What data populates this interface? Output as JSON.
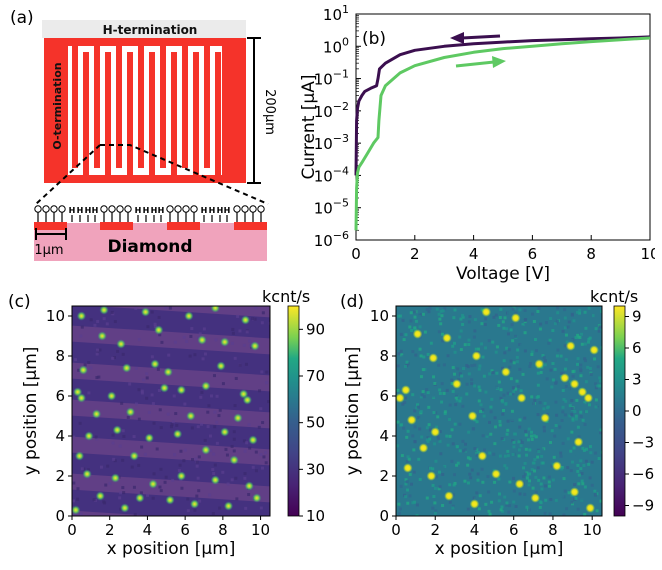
{
  "panel_a": {
    "label": "(a)",
    "h_termination": "H-termination",
    "o_termination": "O-termination",
    "scale_200": "200μm",
    "scale_1": "1μm",
    "diamond": "Diamond",
    "colors": {
      "metal": "#f5332a",
      "diamond": "#f0a3bc",
      "background_strip": "#ebebeb"
    }
  },
  "panel_b": {
    "label": "(b)"
  },
  "panel_c": {
    "label": "(c)",
    "colorbar_title": "kcnt/s",
    "colorbar_ticks": [
      "90",
      "70",
      "50",
      "30",
      "10"
    ]
  },
  "panel_d": {
    "label": "(d)",
    "colorbar_title": "kcnt/s",
    "colorbar_ticks": [
      "9",
      "6",
      "3",
      "0",
      "−3",
      "−6",
      "−9"
    ]
  },
  "chart_data": [
    {
      "type": "line",
      "panel": "b",
      "xlabel": "Voltage [V]",
      "ylabel": "Current [μA]",
      "xlim": [
        0,
        10
      ],
      "ylim": [
        1e-06,
        10
      ],
      "yscale": "log",
      "xticks": [
        "0",
        "2",
        "4",
        "6",
        "8",
        "10"
      ],
      "yticks": [
        "10^1",
        "10^0",
        "10^-1",
        "10^-2",
        "10^-3",
        "10^-4",
        "10^-5",
        "10^-6"
      ],
      "arrow_annotations": [
        "sweep down (dark)",
        "sweep up (green)"
      ],
      "series": [
        {
          "color": "#3b0f4f",
          "x": [
            0.0,
            0.02,
            0.05,
            0.1,
            0.2,
            0.3,
            0.5,
            0.7,
            0.75,
            0.8,
            1.0,
            1.5,
            2,
            3,
            4,
            5,
            6,
            7,
            8,
            9,
            10
          ],
          "y": [
            0.0001,
            0.005,
            0.012,
            0.02,
            0.03,
            0.04,
            0.05,
            0.06,
            0.1,
            0.2,
            0.3,
            0.55,
            0.75,
            1.0,
            1.2,
            1.35,
            1.5,
            1.6,
            1.7,
            1.8,
            1.95
          ]
        },
        {
          "color": "#5ec962",
          "x": [
            0.0,
            0.02,
            0.05,
            0.1,
            0.2,
            0.4,
            0.6,
            0.75,
            0.78,
            0.85,
            1.0,
            1.5,
            2,
            3,
            4,
            5,
            6,
            7,
            8,
            9,
            10
          ],
          "y": [
            2e-06,
            4e-05,
            0.00012,
            0.00018,
            0.00025,
            0.0005,
            0.001,
            0.0015,
            0.005,
            0.03,
            0.06,
            0.15,
            0.25,
            0.45,
            0.65,
            0.85,
            1.0,
            1.2,
            1.4,
            1.6,
            1.8
          ]
        }
      ]
    },
    {
      "type": "heatmap",
      "panel": "c",
      "xlabel": "x position [μm]",
      "ylabel": "y position [μm]",
      "xlim": [
        0,
        10.5
      ],
      "ylim": [
        0,
        10.5
      ],
      "xticks": [
        "0",
        "2",
        "4",
        "6",
        "8",
        "10"
      ],
      "yticks": [
        "0",
        "2",
        "4",
        "6",
        "8",
        "10"
      ],
      "colorbar_range": [
        10,
        100
      ],
      "colormap": "viridis",
      "stripe_count": 6,
      "spots": [
        [
          0.5,
          10.0
        ],
        [
          1.7,
          10.3
        ],
        [
          3.9,
          10.2
        ],
        [
          4.6,
          9.3
        ],
        [
          6.2,
          10.0
        ],
        [
          7.6,
          10.4
        ],
        [
          9.2,
          9.8
        ],
        [
          1.6,
          9.0
        ],
        [
          2.6,
          8.6
        ],
        [
          6.9,
          8.8
        ],
        [
          8.1,
          8.7
        ],
        [
          9.7,
          8.5
        ],
        [
          0.6,
          7.3
        ],
        [
          2.9,
          7.4
        ],
        [
          4.4,
          7.6
        ],
        [
          5.1,
          7.2
        ],
        [
          7.9,
          7.5
        ],
        [
          0.3,
          6.2
        ],
        [
          0.5,
          5.9
        ],
        [
          2.1,
          6.0
        ],
        [
          4.9,
          6.4
        ],
        [
          5.8,
          6.3
        ],
        [
          7.1,
          6.5
        ],
        [
          9.1,
          6.1
        ],
        [
          9.3,
          5.8
        ],
        [
          1.3,
          5.1
        ],
        [
          3.1,
          5.2
        ],
        [
          6.3,
          5.0
        ],
        [
          8.8,
          4.9
        ],
        [
          0.9,
          4.0
        ],
        [
          2.4,
          4.3
        ],
        [
          4.1,
          3.9
        ],
        [
          5.6,
          4.1
        ],
        [
          8.1,
          4.2
        ],
        [
          9.6,
          3.8
        ],
        [
          0.4,
          3.0
        ],
        [
          3.3,
          3.0
        ],
        [
          7.1,
          3.3
        ],
        [
          8.6,
          2.8
        ],
        [
          0.8,
          2.1
        ],
        [
          2.3,
          1.9
        ],
        [
          4.3,
          1.6
        ],
        [
          5.8,
          2.0
        ],
        [
          7.6,
          1.8
        ],
        [
          9.4,
          1.5
        ],
        [
          1.5,
          1.0
        ],
        [
          3.6,
          0.9
        ],
        [
          5.2,
          0.8
        ],
        [
          6.5,
          0.6
        ],
        [
          8.3,
          0.5
        ],
        [
          9.8,
          0.9
        ],
        [
          0.2,
          0.3
        ],
        [
          2.8,
          0.4
        ]
      ]
    },
    {
      "type": "heatmap",
      "panel": "d",
      "xlabel": "x position [μm]",
      "ylabel": "y position [μm]",
      "xlim": [
        0,
        10.5
      ],
      "ylim": [
        0,
        10.5
      ],
      "xticks": [
        "0",
        "2",
        "4",
        "6",
        "8",
        "10"
      ],
      "yticks": [
        "0",
        "2",
        "4",
        "6",
        "8",
        "10"
      ],
      "colorbar_range": [
        -10,
        10
      ],
      "colormap": "viridis",
      "spots": [
        [
          4.6,
          10.2
        ],
        [
          6.1,
          9.9
        ],
        [
          1.1,
          9.1
        ],
        [
          2.6,
          8.9
        ],
        [
          4.1,
          8.0
        ],
        [
          8.9,
          8.5
        ],
        [
          10.1,
          8.3
        ],
        [
          1.9,
          7.9
        ],
        [
          5.6,
          7.2
        ],
        [
          7.3,
          7.6
        ],
        [
          0.2,
          5.9
        ],
        [
          0.5,
          6.3
        ],
        [
          3.1,
          6.6
        ],
        [
          6.4,
          5.9
        ],
        [
          8.6,
          6.9
        ],
        [
          9.1,
          6.6
        ],
        [
          9.5,
          6.2
        ],
        [
          9.8,
          5.9
        ],
        [
          0.8,
          4.8
        ],
        [
          2.0,
          4.2
        ],
        [
          3.9,
          5.0
        ],
        [
          7.6,
          4.9
        ],
        [
          9.3,
          3.7
        ],
        [
          4.4,
          3.0
        ],
        [
          0.6,
          2.4
        ],
        [
          1.8,
          2.0
        ],
        [
          5.1,
          2.1
        ],
        [
          6.3,
          1.6
        ],
        [
          8.2,
          2.5
        ],
        [
          9.1,
          1.2
        ],
        [
          2.7,
          1.0
        ],
        [
          4.0,
          0.6
        ],
        [
          7.1,
          0.9
        ],
        [
          9.9,
          0.4
        ],
        [
          1.4,
          3.4
        ]
      ]
    }
  ]
}
